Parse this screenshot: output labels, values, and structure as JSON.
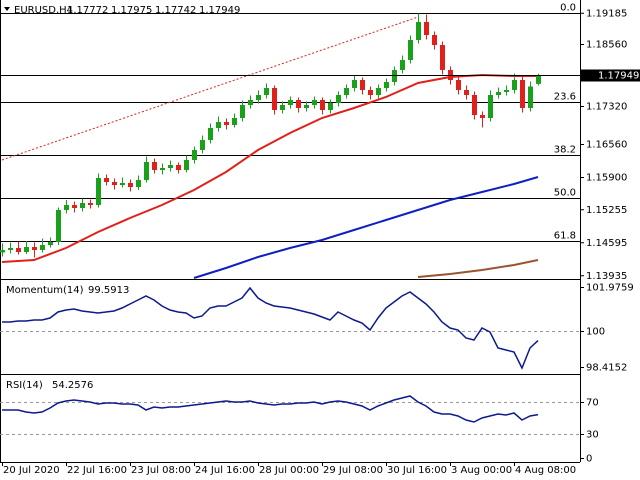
{
  "chart_data": {
    "type": "candlestick",
    "title": "EURUSD,H4",
    "up_color": "#1aa01a",
    "down_color": "#e0201a",
    "categories": [
      "20 Jul 2020",
      null,
      null,
      null,
      null,
      null,
      null,
      null,
      "22 Jul 16:00",
      null,
      null,
      null,
      null,
      null,
      null,
      null,
      "23 Jul 08:00",
      null,
      null,
      null,
      null,
      null,
      null,
      null,
      "24 Jul 16:00",
      null,
      null,
      null,
      null,
      null,
      null,
      null,
      "28 Jul 00:00",
      null,
      null,
      null,
      null,
      null,
      null,
      null,
      "29 Jul 08:00",
      null,
      null,
      null,
      null,
      null,
      null,
      null,
      "30 Jul 16:00",
      null,
      null,
      null,
      null,
      null,
      null,
      null,
      "3 Aug 00:00",
      null,
      null,
      null,
      null,
      null,
      null,
      null,
      "4 Aug 08:00",
      null,
      null,
      null
    ],
    "candles": [
      [
        1.144,
        1.1458,
        1.1432,
        1.1445
      ],
      [
        1.1445,
        1.146,
        1.1438,
        1.1449
      ],
      [
        1.1449,
        1.1462,
        1.1436,
        1.1441
      ],
      [
        1.1441,
        1.1463,
        1.1437,
        1.1451
      ],
      [
        1.1451,
        1.146,
        1.143,
        1.1445
      ],
      [
        1.1445,
        1.1468,
        1.144,
        1.1455
      ],
      [
        1.1455,
        1.147,
        1.145,
        1.1461
      ],
      [
        1.1461,
        1.153,
        1.1455,
        1.1525
      ],
      [
        1.1525,
        1.1545,
        1.1518,
        1.1535
      ],
      [
        1.1535,
        1.1542,
        1.152,
        1.1529
      ],
      [
        1.1529,
        1.1548,
        1.1522,
        1.1539
      ],
      [
        1.1539,
        1.1546,
        1.1528,
        1.1535
      ],
      [
        1.1535,
        1.1598,
        1.153,
        1.1589
      ],
      [
        1.1589,
        1.1596,
        1.1574,
        1.1581
      ],
      [
        1.1581,
        1.1588,
        1.1566,
        1.1575
      ],
      [
        1.1575,
        1.159,
        1.157,
        1.1579
      ],
      [
        1.1579,
        1.1586,
        1.1562,
        1.1571
      ],
      [
        1.1571,
        1.1594,
        1.1565,
        1.1585
      ],
      [
        1.1585,
        1.1632,
        1.158,
        1.1621
      ],
      [
        1.1621,
        1.1628,
        1.1598,
        1.1605
      ],
      [
        1.1605,
        1.1618,
        1.1596,
        1.1609
      ],
      [
        1.1609,
        1.1624,
        1.1602,
        1.1615
      ],
      [
        1.1615,
        1.162,
        1.1598,
        1.1605
      ],
      [
        1.1605,
        1.1634,
        1.16,
        1.1625
      ],
      [
        1.1625,
        1.1652,
        1.1618,
        1.1645
      ],
      [
        1.1645,
        1.1674,
        1.1638,
        1.1665
      ],
      [
        1.1665,
        1.1698,
        1.1658,
        1.1689
      ],
      [
        1.1689,
        1.1712,
        1.1682,
        1.1701
      ],
      [
        1.1701,
        1.1708,
        1.1686,
        1.1695
      ],
      [
        1.1695,
        1.1718,
        1.169,
        1.1709
      ],
      [
        1.1709,
        1.1744,
        1.1702,
        1.1735
      ],
      [
        1.1735,
        1.1754,
        1.1728,
        1.1745
      ],
      [
        1.1745,
        1.1764,
        1.1738,
        1.1755
      ],
      [
        1.1755,
        1.1778,
        1.1748,
        1.1769
      ],
      [
        1.1769,
        1.1774,
        1.1716,
        1.1725
      ],
      [
        1.1725,
        1.1742,
        1.1718,
        1.1735
      ],
      [
        1.1735,
        1.1752,
        1.1728,
        1.1745
      ],
      [
        1.1745,
        1.175,
        1.172,
        1.1729
      ],
      [
        1.1729,
        1.1742,
        1.1722,
        1.1735
      ],
      [
        1.1735,
        1.1752,
        1.1728,
        1.1745
      ],
      [
        1.1745,
        1.175,
        1.1716,
        1.1725
      ],
      [
        1.1725,
        1.1746,
        1.1718,
        1.1739
      ],
      [
        1.1739,
        1.1762,
        1.1732,
        1.1755
      ],
      [
        1.1755,
        1.1776,
        1.1748,
        1.1769
      ],
      [
        1.1769,
        1.1794,
        1.1762,
        1.1785
      ],
      [
        1.1785,
        1.179,
        1.1756,
        1.1765
      ],
      [
        1.1765,
        1.1772,
        1.1746,
        1.1755
      ],
      [
        1.1755,
        1.1776,
        1.1748,
        1.1769
      ],
      [
        1.1769,
        1.1788,
        1.1762,
        1.1781
      ],
      [
        1.1781,
        1.1812,
        1.1774,
        1.1805
      ],
      [
        1.1805,
        1.1834,
        1.1798,
        1.1825
      ],
      [
        1.1825,
        1.1874,
        1.1818,
        1.1865
      ],
      [
        1.1865,
        1.1918,
        1.1858,
        1.1901
      ],
      [
        1.1901,
        1.1916,
        1.1866,
        1.1875
      ],
      [
        1.1875,
        1.1882,
        1.1846,
        1.1855
      ],
      [
        1.1855,
        1.1862,
        1.1796,
        1.1805
      ],
      [
        1.1805,
        1.1812,
        1.1776,
        1.1785
      ],
      [
        1.1785,
        1.1792,
        1.1756,
        1.1765
      ],
      [
        1.1765,
        1.1774,
        1.1746,
        1.1755
      ],
      [
        1.1755,
        1.1762,
        1.1706,
        1.1715
      ],
      [
        1.1715,
        1.1722,
        1.169,
        1.1709
      ],
      [
        1.1709,
        1.1764,
        1.1702,
        1.1755
      ],
      [
        1.1755,
        1.177,
        1.1748,
        1.1761
      ],
      [
        1.1761,
        1.1774,
        1.1754,
        1.1765
      ],
      [
        1.1765,
        1.1798,
        1.1758,
        1.1785
      ],
      [
        1.1785,
        1.1792,
        1.172,
        1.1729
      ],
      [
        1.1729,
        1.1782,
        1.1722,
        1.1772
      ],
      [
        1.17772,
        1.17975,
        1.17742,
        1.17949
      ]
    ],
    "ylim": [
      1.1389,
      1.1945
    ],
    "yticks": [
      1.19185,
      {
        "value": 1.1856,
        "label": "1.18560"
      },
      {
        "value": 1.1732,
        "label": "1.17320"
      },
      {
        "value": 1.1656,
        "label": "1.16560"
      },
      {
        "value": 1.159,
        "label": "1.15900"
      },
      1.15255,
      1.14595,
      1.13935
    ],
    "ma": [
      {
        "color": "#e0201a",
        "x": [
          0,
          4,
          8,
          12,
          16,
          20,
          24,
          28,
          32,
          36,
          40,
          44,
          48,
          52,
          56,
          60,
          64,
          67
        ],
        "values": [
          1.1421,
          1.1425,
          1.1449,
          1.1481,
          1.1509,
          1.1535,
          1.1565,
          1.1601,
          1.1645,
          1.1679,
          1.1709,
          1.1729,
          1.1751,
          1.1779,
          1.1791,
          1.1795,
          1.1793,
          1.1793
        ]
      },
      {
        "color": "#1020c0",
        "x": [
          24,
          28,
          32,
          36,
          40,
          44,
          48,
          52,
          56,
          60,
          64,
          67
        ],
        "values": [
          1.1389,
          1.1409,
          1.1431,
          1.1449,
          1.1465,
          1.1485,
          1.1505,
          1.1525,
          1.1545,
          1.1561,
          1.1577,
          1.1591
        ]
      },
      {
        "color": "#9a5530",
        "x": [
          52,
          56,
          60,
          64,
          67
        ],
        "values": [
          1.1391,
          1.1397,
          1.1405,
          1.1415,
          1.1425
        ]
      }
    ],
    "trendline": {
      "color": "#e0201a",
      "x": [
        0,
        52
      ],
      "values": [
        1.1625,
        1.1911
      ]
    },
    "fib": {
      "color": "#000000",
      "levels": [
        {
          "label": "0.0",
          "value": 1.1918
        },
        {
          "label": "23.6",
          "value": 1.1741
        },
        {
          "label": "38.2",
          "value": 1.1635
        },
        {
          "label": "50.0",
          "value": 1.1549
        },
        {
          "label": "61.8",
          "value": 1.1463
        }
      ]
    },
    "momentum": {
      "name": "Momentum(14)",
      "color": "#0d1a8c",
      "ylim": [
        98.148,
        102.243
      ],
      "yticks": [
        101.9759,
        100,
        98.4152
      ],
      "values": [
        100.418,
        100.418,
        100.462,
        100.462,
        100.507,
        100.507,
        100.596,
        100.863,
        100.952,
        100.997,
        100.908,
        100.863,
        100.819,
        100.863,
        100.908,
        101.041,
        101.219,
        101.397,
        101.575,
        101.397,
        101.13,
        100.952,
        100.863,
        100.819,
        100.596,
        100.685,
        101.041,
        101.13,
        101.13,
        101.308,
        101.486,
        101.931,
        101.486,
        101.264,
        101.13,
        101.086,
        101.041,
        100.952,
        100.863,
        100.774,
        100.64,
        100.507,
        100.863,
        100.685,
        100.507,
        100.373,
        100.062,
        100.596,
        101.041,
        101.308,
        101.575,
        101.753,
        101.486,
        101.219,
        100.863,
        100.418,
        100.151,
        100.062,
        99.706,
        99.617,
        100.151,
        99.973,
        99.261,
        99.172,
        99.083,
        98.371,
        99.261,
        99.5913
      ]
    },
    "rsi": {
      "name": "RSI(14)",
      "color": "#0d1a8c",
      "ylim": [
        -3.75,
        102.5
      ],
      "yticks": [
        70,
        30,
        0
      ],
      "values": [
        60,
        60,
        60,
        57.5,
        56.3,
        57.5,
        62.5,
        68.8,
        71.3,
        72.5,
        71.3,
        70,
        67.5,
        68.8,
        68.8,
        67.5,
        67.5,
        66.3,
        60,
        63.8,
        62.5,
        63.8,
        63.8,
        65,
        66.3,
        67.5,
        68.8,
        70,
        71.3,
        70,
        70,
        71.3,
        68.8,
        67.5,
        66.3,
        67.5,
        67.5,
        68.8,
        68.8,
        70,
        67.5,
        70,
        71.3,
        70,
        67.5,
        65,
        60,
        65,
        68.8,
        72.5,
        75,
        77.5,
        70,
        65,
        57.5,
        55,
        55,
        52.5,
        47.5,
        45,
        50,
        52.5,
        55,
        53.8,
        56.3,
        47.5,
        52.5,
        54.2576
      ]
    }
  }
}
